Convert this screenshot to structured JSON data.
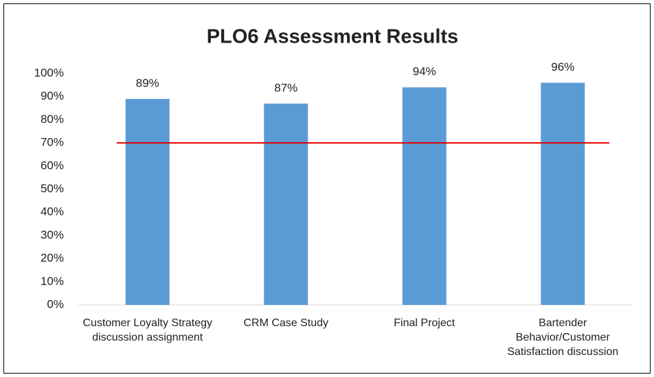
{
  "chart_data": {
    "type": "bar",
    "title": "PLO6 Assessment Results",
    "categories": [
      "Customer Loyalty Strategy discussion assignment",
      "CRM Case Study",
      "Final Project",
      "Bartender Behavior/Customer Satisfaction discussion"
    ],
    "values": [
      89,
      87,
      94,
      96
    ],
    "value_labels": [
      "89%",
      "87%",
      "94%",
      "96%"
    ],
    "color": "#5b9bd5",
    "ylim": [
      0,
      100
    ],
    "yticks": [
      {
        "value": 0,
        "label": "0%"
      },
      {
        "value": 10,
        "label": "10%"
      },
      {
        "value": 20,
        "label": "20%"
      },
      {
        "value": 30,
        "label": "30%"
      },
      {
        "value": 40,
        "label": "40%"
      },
      {
        "value": 50,
        "label": "50%"
      },
      {
        "value": 60,
        "label": "60%"
      },
      {
        "value": 70,
        "label": "70%"
      },
      {
        "value": 80,
        "label": "80%"
      },
      {
        "value": 90,
        "label": "90%"
      },
      {
        "value": 100,
        "label": "100%"
      }
    ],
    "grid": false,
    "threshold": 70,
    "threshold_color": "#e00000"
  }
}
